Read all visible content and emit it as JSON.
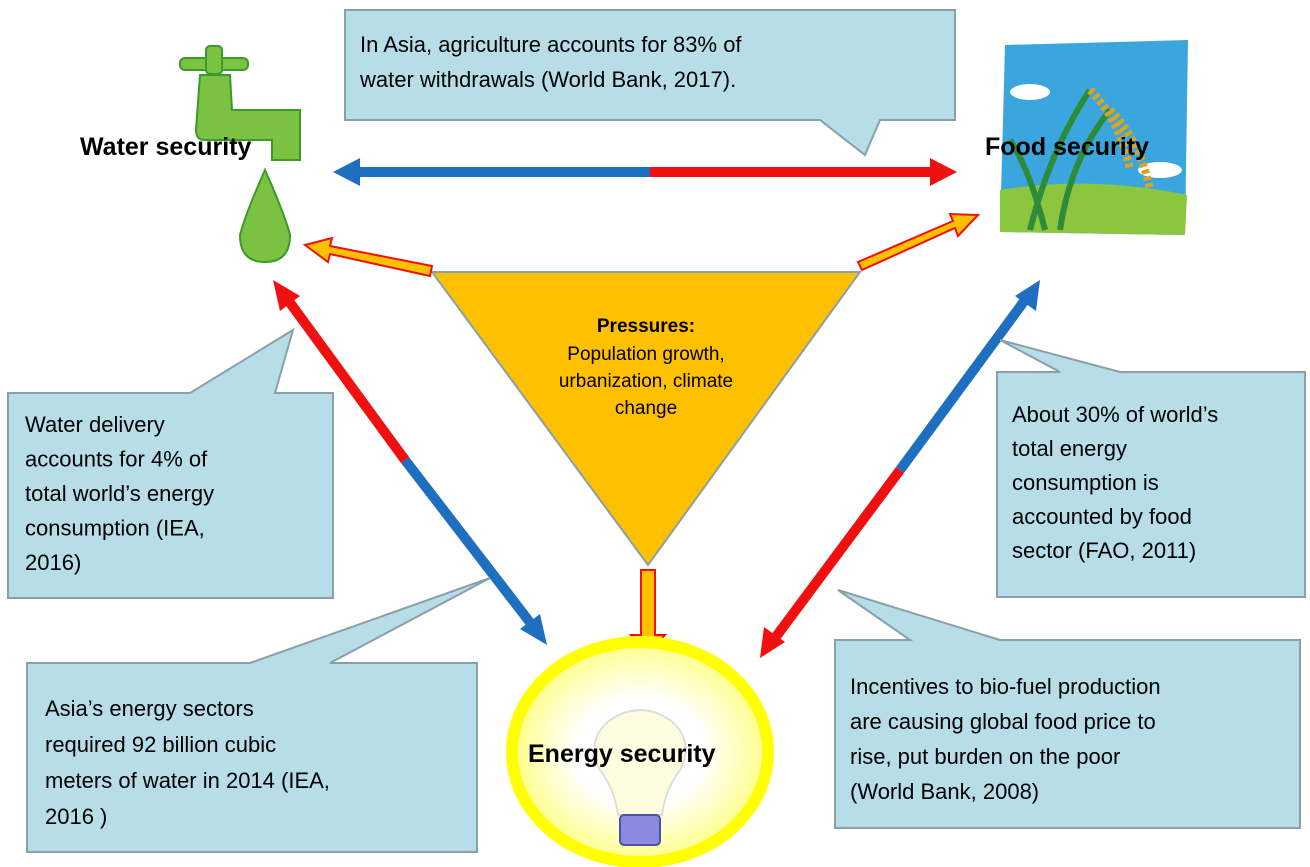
{
  "nodes": [
    {
      "label": "Water security"
    },
    {
      "label": "Food security"
    },
    {
      "label": "Energy security"
    }
  ],
  "pressures": {
    "title": "Pressures:",
    "lines": [
      "Population growth,",
      "urbanization, climate",
      "change"
    ]
  },
  "callouts": [
    {
      "lines": [
        "In Asia, agriculture accounts for 83% of",
        "water withdrawals (World Bank, 2017)."
      ]
    },
    {
      "lines": [
        "Water delivery",
        "accounts for 4% of",
        "total world’s energy",
        "consumption  (IEA,",
        "2016)"
      ]
    },
    {
      "lines": [
        "About  30% of world’s",
        "total energy",
        "consumption  is",
        "accounted by food",
        "sector (FAO, 2011)"
      ]
    },
    {
      "lines": [
        "Asia’s energy sectors",
        "required 92 billion cubic",
        "meters of water in 2014 (IEA,",
        "2016 )"
      ]
    },
    {
      "lines": [
        "Incentives to bio-fuel production",
        "are causing global food price to",
        "rise, put burden on the poor",
        "(World Bank, 2008)"
      ]
    }
  ]
}
